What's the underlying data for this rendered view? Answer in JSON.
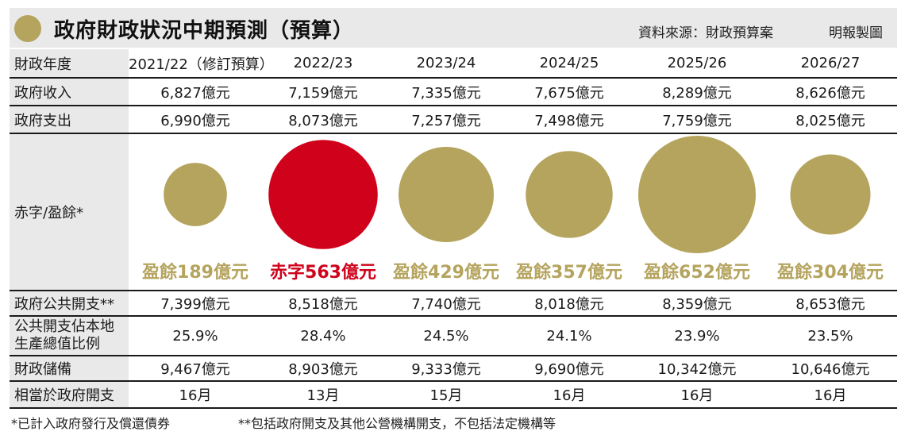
{
  "header": {
    "title": "政府財政狀況中期預測（預算）",
    "source": "資料來源：財政預算案",
    "credit": "明報製圖"
  },
  "colors": {
    "surplus": "#b5a45e",
    "deficit": "#d0021b",
    "label_bg": "#e9e9e9"
  },
  "chart_data": {
    "type": "table",
    "columns": [
      "2021/22（修訂預算）",
      "2022/23",
      "2023/24",
      "2024/25",
      "2025/26",
      "2026/27"
    ],
    "header_label": "財政年度",
    "rows": [
      {
        "label": "政府收入",
        "cells": [
          "6,827億元",
          "7,159億元",
          "7,335億元",
          "7,675億元",
          "8,289億元",
          "8,626億元"
        ]
      },
      {
        "label": "政府支出",
        "cells": [
          "6,990億元",
          "8,073億元",
          "7,257億元",
          "7,498億元",
          "7,759億元",
          "8,025億元"
        ]
      }
    ],
    "balance": {
      "label": "赤字/盈餘*",
      "kinds": [
        "surplus",
        "deficit",
        "surplus",
        "surplus",
        "surplus",
        "surplus"
      ],
      "values": [
        189,
        563,
        429,
        357,
        652,
        304
      ],
      "labels": [
        "盈餘189億元",
        "赤字563億元",
        "盈餘429億元",
        "盈餘357億元",
        "盈餘652億元",
        "盈餘304億元"
      ]
    },
    "rows_after": [
      {
        "label": "政府公共開支**",
        "cells": [
          "7,399億元",
          "8,518億元",
          "7,740億元",
          "8,018億元",
          "8,359億元",
          "8,653億元"
        ]
      },
      {
        "label_line1": "公共開支佔本地",
        "label_line2": "生產總值比例",
        "cells": [
          "25.9%",
          "28.4%",
          "24.5%",
          "24.1%",
          "23.9%",
          "23.5%"
        ]
      },
      {
        "label": "財政儲備",
        "cells": [
          "9,467億元",
          "8,903億元",
          "9,333億元",
          "9,690億元",
          "10,342億元",
          "10,646億元"
        ]
      },
      {
        "label": "相當於政府開支",
        "cells": [
          "16月",
          "13月",
          "15月",
          "16月",
          "16月",
          "16月"
        ]
      }
    ]
  },
  "footnotes": {
    "note1": "*已計入政府發行及償還債券",
    "note2": "**包括政府開支及其他公營機構開支，不包括法定機構等"
  }
}
